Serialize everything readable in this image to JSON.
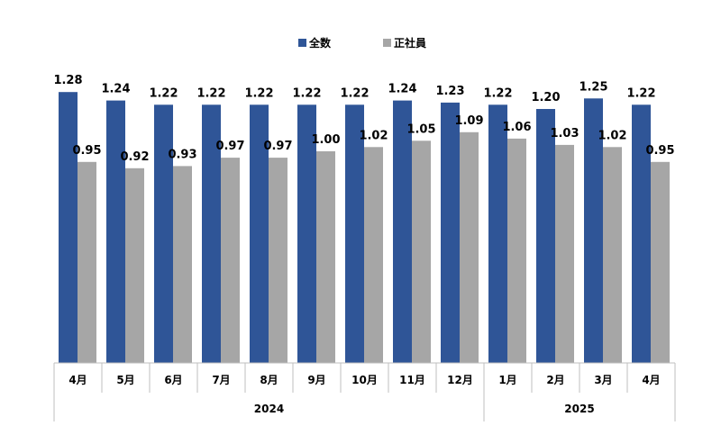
{
  "chart_data": {
    "type": "bar",
    "categories": [
      "4月",
      "5月",
      "6月",
      "7月",
      "8月",
      "9月",
      "10月",
      "11月",
      "12月",
      "1月",
      "2月",
      "3月",
      "4月"
    ],
    "year_groups": [
      {
        "label": "2024",
        "start": 0,
        "end": 8
      },
      {
        "label": "2025",
        "start": 9,
        "end": 12
      }
    ],
    "series": [
      {
        "name": "全数",
        "color": "#2F5597",
        "values": [
          1.28,
          1.24,
          1.22,
          1.22,
          1.22,
          1.22,
          1.22,
          1.24,
          1.23,
          1.22,
          1.2,
          1.25,
          1.22
        ]
      },
      {
        "name": "正社員",
        "color": "#A6A6A6",
        "values": [
          0.95,
          0.92,
          0.93,
          0.97,
          0.97,
          1.0,
          1.02,
          1.05,
          1.09,
          1.06,
          1.03,
          1.02,
          0.95
        ]
      }
    ],
    "ylim": [
      0,
      1.35
    ],
    "legend_position": "top-center",
    "grid": false,
    "title": "",
    "xlabel": "",
    "ylabel": ""
  }
}
